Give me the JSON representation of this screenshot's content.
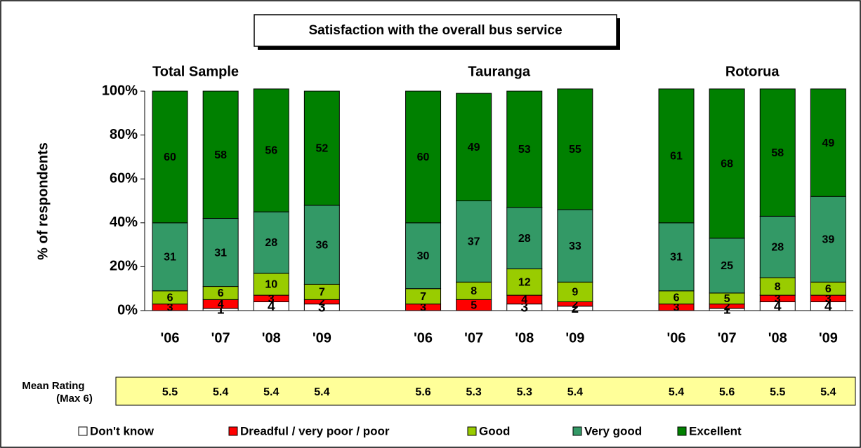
{
  "chart_data": {
    "type": "stacked_bar",
    "title": "Satisfaction with the overall bus service",
    "ylabel": "% of respondents",
    "groups": [
      "Total Sample",
      "Tauranga",
      "Rotorua"
    ],
    "categories": [
      "'06",
      "'07",
      "'08",
      "'09",
      "'06",
      "'07",
      "'08",
      "'09",
      "'06",
      "'07",
      "'08",
      "'09"
    ],
    "series": [
      {
        "name": "Don't know",
        "color": "#ffffff",
        "values": [
          null,
          1,
          4,
          3,
          null,
          null,
          3,
          2,
          null,
          1,
          4,
          4
        ]
      },
      {
        "name": "Dreadful / very poor / poor",
        "color": "#ff0000",
        "values": [
          3,
          4,
          3,
          2,
          3,
          5,
          4,
          2,
          3,
          2,
          3,
          3
        ]
      },
      {
        "name": "Good",
        "color": "#99cc00",
        "values": [
          6,
          6,
          10,
          7,
          7,
          8,
          12,
          9,
          6,
          5,
          8,
          6
        ]
      },
      {
        "name": "Very good",
        "color": "#339966",
        "values": [
          31,
          31,
          28,
          36,
          30,
          37,
          28,
          33,
          31,
          25,
          28,
          39
        ]
      },
      {
        "name": "Excellent",
        "color": "#008000",
        "values": [
          60,
          58,
          56,
          52,
          60,
          49,
          53,
          55,
          61,
          68,
          58,
          49
        ]
      }
    ],
    "ylim": [
      0,
      100
    ],
    "yticks": [
      {
        "value": 0,
        "label": "0%"
      },
      {
        "value": 20,
        "label": "20%"
      },
      {
        "value": 40,
        "label": "40%"
      },
      {
        "value": 60,
        "label": "60%"
      },
      {
        "value": 80,
        "label": "80%"
      },
      {
        "value": 100,
        "label": "100%"
      }
    ],
    "mean_rating": {
      "label": "Mean Rating",
      "sublabel": "(Max 6)",
      "values": [
        5.5,
        5.4,
        5.4,
        5.4,
        5.6,
        5.3,
        5.3,
        5.4,
        5.4,
        5.6,
        5.5,
        5.4
      ]
    }
  }
}
